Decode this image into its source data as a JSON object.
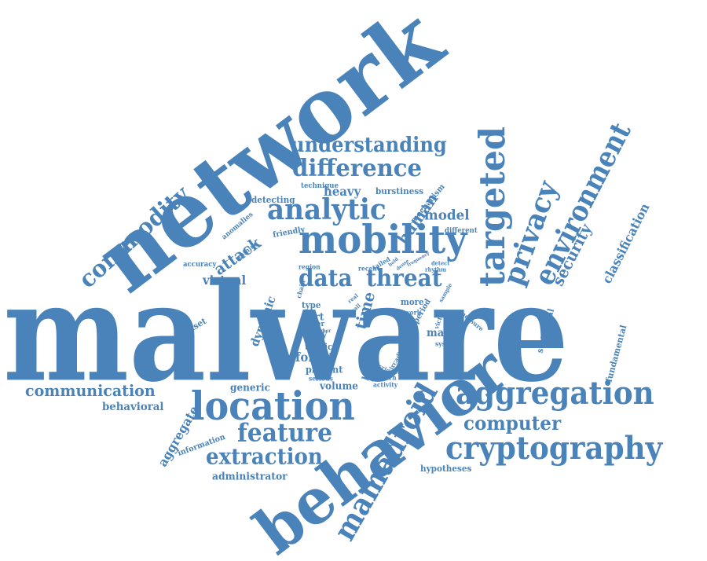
{
  "colors": {
    "word": "#4a83b9",
    "background": "#ffffff"
  },
  "words": [
    "malware",
    "network",
    "behavior",
    "location",
    "mobility",
    "aggregation",
    "cryptography",
    "targeted",
    "environment",
    "privacy",
    "mamadroid",
    "analytic",
    "difference",
    "understanding",
    "commodity",
    "data",
    "threat",
    "feature",
    "extraction",
    "computer",
    "communication",
    "security",
    "classification",
    "human",
    "model",
    "attack",
    "virtual",
    "aggregate",
    "behavioral",
    "administrator",
    "hypotheses",
    "heavy",
    "detecting",
    "burstiness",
    "technique",
    "mechanism",
    "friendly",
    "anomalies",
    "different",
    "accuracy",
    "training",
    "dynamic",
    "dataset",
    "region",
    "chain",
    "tailed",
    "detect",
    "rhythm",
    "sample",
    "type",
    "port",
    "user",
    "study",
    "traffic",
    "forest",
    "present",
    "serious",
    "volume",
    "generic",
    "information",
    "time",
    "real",
    "call",
    "building",
    "circadian",
    "pattern",
    "activity",
    "period",
    "victim",
    "system",
    "major",
    "more",
    "work",
    "measure",
    "statistical",
    "fundamental",
    "recent",
    "paper",
    "world",
    "hold",
    "dense",
    "frequency",
    "crime",
    "relies",
    "tools"
  ]
}
